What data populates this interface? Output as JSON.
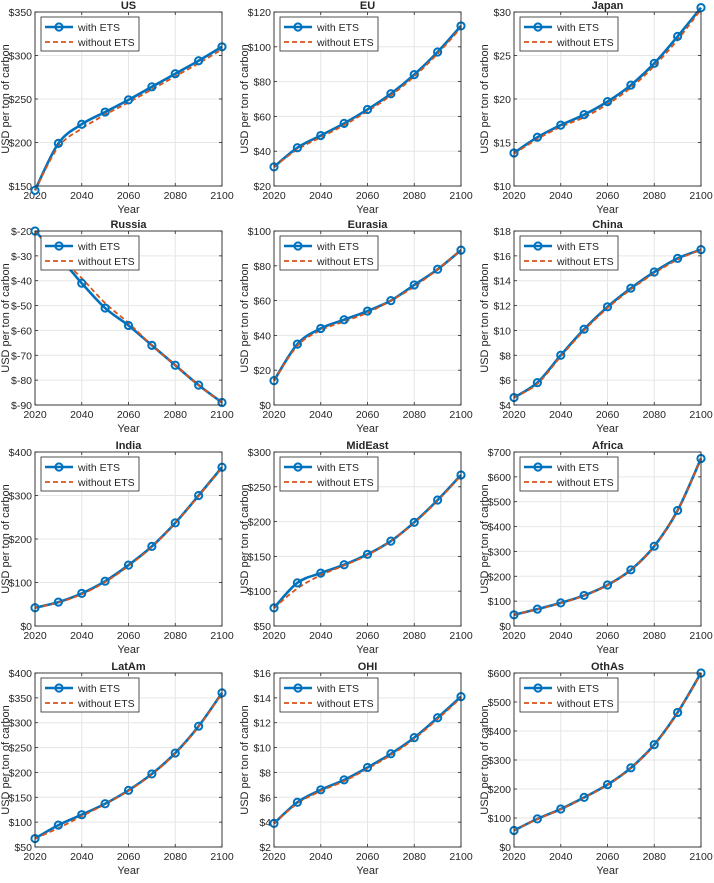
{
  "figure": {
    "legend": {
      "with_label": "with ETS",
      "without_label": "without ETS"
    },
    "colors": {
      "with": "#0072BD",
      "without": "#D95319",
      "grid": "#e6e6e6",
      "axis": "#262626"
    }
  },
  "chart_data": [
    {
      "type": "line",
      "title": "US",
      "xlabel": "Year",
      "ylabel": "USD per ton of carbon",
      "xlim": [
        2020,
        2100
      ],
      "ylim": [
        150,
        350
      ],
      "xticks": [
        "2020",
        "2040",
        "2060",
        "2080",
        "2100"
      ],
      "yticks": [
        "$150",
        "$200",
        "$250",
        "$300",
        "$350"
      ],
      "ytick_values": [
        150,
        200,
        250,
        300,
        350
      ],
      "x": [
        2020,
        2030,
        2040,
        2050,
        2060,
        2070,
        2080,
        2090,
        2100
      ],
      "series": [
        {
          "name": "with ETS",
          "values": [
            145,
            199,
            221,
            235,
            249,
            264,
            279,
            294,
            310
          ]
        },
        {
          "name": "without ETS",
          "values": [
            145,
            195,
            216,
            232,
            246,
            261,
            276,
            291,
            307
          ]
        }
      ]
    },
    {
      "type": "line",
      "title": "EU",
      "xlabel": "Year",
      "ylabel": "USD per ton of carbon",
      "xlim": [
        2020,
        2100
      ],
      "ylim": [
        20,
        120
      ],
      "xticks": [
        "2020",
        "2040",
        "2060",
        "2080",
        "2100"
      ],
      "yticks": [
        "$20",
        "$40",
        "$60",
        "$80",
        "$100",
        "$120"
      ],
      "ytick_values": [
        20,
        40,
        60,
        80,
        100,
        120
      ],
      "x": [
        2020,
        2030,
        2040,
        2050,
        2060,
        2070,
        2080,
        2090,
        2100
      ],
      "series": [
        {
          "name": "with ETS",
          "values": [
            31,
            42,
            49,
            56,
            64,
            73,
            84,
            97,
            112
          ]
        },
        {
          "name": "without ETS",
          "values": [
            31,
            41,
            48,
            55,
            63,
            72,
            83,
            96,
            111
          ]
        }
      ]
    },
    {
      "type": "line",
      "title": "Japan",
      "xlabel": "Year",
      "ylabel": "USD per ton of carbon",
      "xlim": [
        2020,
        2100
      ],
      "ylim": [
        10,
        30
      ],
      "xticks": [
        "2020",
        "2040",
        "2060",
        "2080",
        "2100"
      ],
      "yticks": [
        "$10",
        "$15",
        "$20",
        "$25",
        "$30"
      ],
      "ytick_values": [
        10,
        15,
        20,
        25,
        30
      ],
      "x": [
        2020,
        2030,
        2040,
        2050,
        2060,
        2070,
        2080,
        2090,
        2100
      ],
      "series": [
        {
          "name": "with ETS",
          "values": [
            13.8,
            15.6,
            17.0,
            18.2,
            19.7,
            21.6,
            24.1,
            27.2,
            30.5
          ]
        },
        {
          "name": "without ETS",
          "values": [
            13.7,
            15.4,
            16.8,
            17.9,
            19.4,
            21.3,
            23.8,
            26.8,
            30.3
          ]
        }
      ]
    },
    {
      "type": "line",
      "title": "Russia",
      "xlabel": "Year",
      "ylabel": "USD per ton of carbon",
      "xlim": [
        2020,
        2100
      ],
      "ylim": [
        -90,
        -20
      ],
      "xticks": [
        "2020",
        "2040",
        "2060",
        "2080",
        "2100"
      ],
      "yticks": [
        "$-90",
        "$-80",
        "$-70",
        "$-60",
        "$-50",
        "$-40",
        "$-30",
        "$-20"
      ],
      "ytick_values": [
        -90,
        -80,
        -70,
        -60,
        -50,
        -40,
        -30,
        -20
      ],
      "x": [
        2020,
        2030,
        2040,
        2050,
        2060,
        2070,
        2080,
        2090,
        2100
      ],
      "series": [
        {
          "name": "with ETS",
          "values": [
            -20,
            -30,
            -41,
            -51,
            -58,
            -66,
            -74,
            -82,
            -89
          ]
        },
        {
          "name": "without ETS",
          "values": [
            -20,
            -30,
            -39,
            -49,
            -57,
            -66,
            -74,
            -82,
            -89
          ]
        }
      ]
    },
    {
      "type": "line",
      "title": "Eurasia",
      "xlabel": "Year",
      "ylabel": "USD per ton of carbon",
      "xlim": [
        2020,
        2100
      ],
      "ylim": [
        0,
        100
      ],
      "xticks": [
        "2020",
        "2040",
        "2060",
        "2080",
        "2100"
      ],
      "yticks": [
        "$0",
        "$20",
        "$40",
        "$60",
        "$80",
        "$100"
      ],
      "ytick_values": [
        0,
        20,
        40,
        60,
        80,
        100
      ],
      "x": [
        2020,
        2030,
        2040,
        2050,
        2060,
        2070,
        2080,
        2090,
        2100
      ],
      "series": [
        {
          "name": "with ETS",
          "values": [
            14,
            35,
            44,
            49,
            54,
            60,
            69,
            78,
            89
          ]
        },
        {
          "name": "without ETS",
          "values": [
            14,
            34,
            43,
            48,
            53,
            60,
            68,
            78,
            89
          ]
        }
      ]
    },
    {
      "type": "line",
      "title": "China",
      "xlabel": "Year",
      "ylabel": "USD per ton of carbon",
      "xlim": [
        2020,
        2100
      ],
      "ylim": [
        4,
        18
      ],
      "xticks": [
        "2020",
        "2040",
        "2060",
        "2080",
        "2100"
      ],
      "yticks": [
        "$4",
        "$6",
        "$8",
        "$10",
        "$12",
        "$14",
        "$16",
        "$18"
      ],
      "ytick_values": [
        4,
        6,
        8,
        10,
        12,
        14,
        16,
        18
      ],
      "x": [
        2020,
        2030,
        2040,
        2050,
        2060,
        2070,
        2080,
        2090,
        2100
      ],
      "series": [
        {
          "name": "with ETS",
          "values": [
            4.6,
            5.8,
            8.0,
            10.1,
            11.9,
            13.4,
            14.7,
            15.8,
            16.5
          ]
        },
        {
          "name": "without ETS",
          "values": [
            4.6,
            5.7,
            7.9,
            10.0,
            11.8,
            13.3,
            14.6,
            15.7,
            16.5
          ]
        }
      ]
    },
    {
      "type": "line",
      "title": "India",
      "xlabel": "Year",
      "ylabel": "USD per ton of carbon",
      "xlim": [
        2020,
        2100
      ],
      "ylim": [
        0,
        400
      ],
      "xticks": [
        "2020",
        "2040",
        "2060",
        "2080",
        "2100"
      ],
      "yticks": [
        "$0",
        "$100",
        "$200",
        "$300",
        "$400"
      ],
      "ytick_values": [
        0,
        100,
        200,
        300,
        400
      ],
      "x": [
        2020,
        2030,
        2040,
        2050,
        2060,
        2070,
        2080,
        2090,
        2100
      ],
      "series": [
        {
          "name": "with ETS",
          "values": [
            42,
            55,
            75,
            103,
            140,
            183,
            237,
            300,
            365
          ]
        },
        {
          "name": "without ETS",
          "values": [
            42,
            54,
            73,
            101,
            138,
            182,
            236,
            299,
            364
          ]
        }
      ]
    },
    {
      "type": "line",
      "title": "MidEast",
      "xlabel": "Year",
      "ylabel": "USD per ton of carbon",
      "xlim": [
        2020,
        2100
      ],
      "ylim": [
        50,
        300
      ],
      "xticks": [
        "2020",
        "2040",
        "2060",
        "2080",
        "2100"
      ],
      "yticks": [
        "$50",
        "$100",
        "$150",
        "$200",
        "$250",
        "$300"
      ],
      "ytick_values": [
        50,
        100,
        150,
        200,
        250,
        300
      ],
      "x": [
        2020,
        2030,
        2040,
        2050,
        2060,
        2070,
        2080,
        2090,
        2100
      ],
      "series": [
        {
          "name": "with ETS",
          "values": [
            76,
            112,
            126,
            138,
            153,
            172,
            199,
            231,
            267
          ]
        },
        {
          "name": "without ETS",
          "values": [
            76,
            104,
            123,
            137,
            152,
            172,
            198,
            230,
            266
          ]
        }
      ]
    },
    {
      "type": "line",
      "title": "Africa",
      "xlabel": "Year",
      "ylabel": "USD per ton of carbon",
      "xlim": [
        2020,
        2100
      ],
      "ylim": [
        0,
        700
      ],
      "xticks": [
        "2020",
        "2040",
        "2060",
        "2080",
        "2100"
      ],
      "yticks": [
        "$0",
        "$100",
        "$200",
        "$300",
        "$400",
        "$500",
        "$600",
        "$700"
      ],
      "ytick_values": [
        0,
        100,
        200,
        300,
        400,
        500,
        600,
        700
      ],
      "x": [
        2020,
        2030,
        2040,
        2050,
        2060,
        2070,
        2080,
        2090,
        2100
      ],
      "series": [
        {
          "name": "with ETS",
          "values": [
            45,
            68,
            93,
            123,
            165,
            226,
            321,
            465,
            674
          ]
        },
        {
          "name": "without ETS",
          "values": [
            45,
            67,
            92,
            122,
            164,
            225,
            320,
            464,
            673
          ]
        }
      ]
    },
    {
      "type": "line",
      "title": "LatAm",
      "xlabel": "Year",
      "ylabel": "USD per ton of carbon",
      "xlim": [
        2020,
        2100
      ],
      "ylim": [
        50,
        400
      ],
      "xticks": [
        "2020",
        "2040",
        "2060",
        "2080",
        "2100"
      ],
      "yticks": [
        "$50",
        "$100",
        "$150",
        "$200",
        "$250",
        "$300",
        "$350",
        "$400"
      ],
      "ytick_values": [
        50,
        100,
        150,
        200,
        250,
        300,
        350,
        400
      ],
      "x": [
        2020,
        2030,
        2040,
        2050,
        2060,
        2070,
        2080,
        2090,
        2100
      ],
      "series": [
        {
          "name": "with ETS",
          "values": [
            67,
            94,
            115,
            137,
            164,
            197,
            239,
            293,
            360
          ]
        },
        {
          "name": "without ETS",
          "values": [
            67,
            88,
            112,
            136,
            163,
            196,
            238,
            292,
            359
          ]
        }
      ]
    },
    {
      "type": "line",
      "title": "OHI",
      "xlabel": "Year",
      "ylabel": "USD per ton of carbon",
      "xlim": [
        2020,
        2100
      ],
      "ylim": [
        2,
        16
      ],
      "xticks": [
        "2020",
        "2040",
        "2060",
        "2080",
        "2100"
      ],
      "yticks": [
        "$2",
        "$4",
        "$6",
        "$8",
        "$10",
        "$12",
        "$14",
        "$16"
      ],
      "ytick_values": [
        2,
        4,
        6,
        8,
        10,
        12,
        14,
        16
      ],
      "x": [
        2020,
        2030,
        2040,
        2050,
        2060,
        2070,
        2080,
        2090,
        2100
      ],
      "series": [
        {
          "name": "with ETS",
          "values": [
            3.9,
            5.6,
            6.6,
            7.4,
            8.4,
            9.5,
            10.8,
            12.4,
            14.1
          ]
        },
        {
          "name": "without ETS",
          "values": [
            3.9,
            5.5,
            6.5,
            7.3,
            8.3,
            9.4,
            10.7,
            12.3,
            14.0
          ]
        }
      ]
    },
    {
      "type": "line",
      "title": "OthAs",
      "xlabel": "Year",
      "ylabel": "USD per ton of carbon",
      "xlim": [
        2020,
        2100
      ],
      "ylim": [
        0,
        600
      ],
      "xticks": [
        "2020",
        "2040",
        "2060",
        "2080",
        "2100"
      ],
      "yticks": [
        "$0",
        "$100",
        "$200",
        "$300",
        "$400",
        "$500",
        "$600"
      ],
      "ytick_values": [
        0,
        100,
        200,
        300,
        400,
        500,
        600
      ],
      "x": [
        2020,
        2030,
        2040,
        2050,
        2060,
        2070,
        2080,
        2090,
        2100
      ],
      "series": [
        {
          "name": "with ETS",
          "values": [
            57,
            97,
            131,
            171,
            215,
            273,
            353,
            464,
            600
          ]
        },
        {
          "name": "without ETS",
          "values": [
            57,
            96,
            130,
            170,
            214,
            272,
            352,
            463,
            599
          ]
        }
      ]
    }
  ]
}
